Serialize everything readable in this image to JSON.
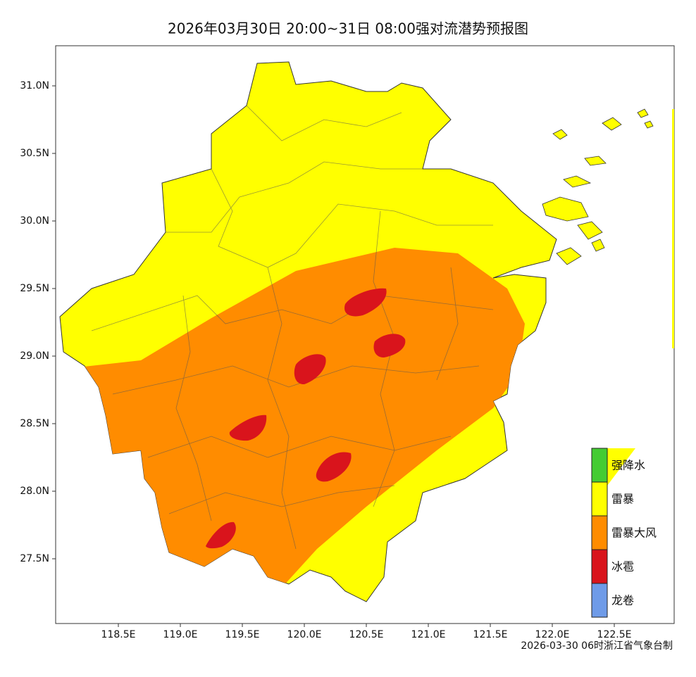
{
  "title": "2026年03月30日 20:00~31日 08:00强对流潜势预报图",
  "lat_ticks": [
    "31.0N",
    "30.5N",
    "30.0N",
    "29.5N",
    "29.0N",
    "28.5N",
    "28.0N",
    "27.5N"
  ],
  "lon_ticks": [
    "118.5E",
    "119.0E",
    "119.5E",
    "120.0E",
    "120.5E",
    "121.0E",
    "121.5E",
    "122.0E",
    "122.5E"
  ],
  "legend": [
    {
      "label": "强降水",
      "color": "#44cc33"
    },
    {
      "label": "雷暴",
      "color": "#ffff00"
    },
    {
      "label": "雷暴大风",
      "color": "#ff8c00"
    },
    {
      "label": "冰雹",
      "color": "#d9141c"
    },
    {
      "label": "龙卷",
      "color": "#6f9be8"
    }
  ],
  "credit": "2026-03-30 06时浙江省气象台制"
}
